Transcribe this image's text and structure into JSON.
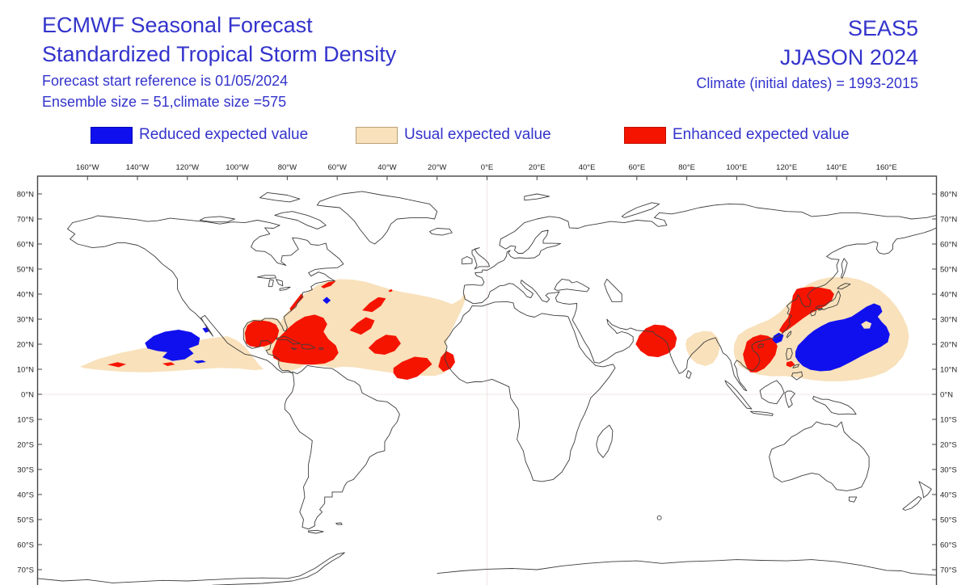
{
  "header": {
    "title_line1": "ECMWF Seasonal Forecast",
    "title_line2": "Standardized Tropical Storm Density",
    "subtitle_line1": "Forecast start reference is 01/05/2024",
    "subtitle_line2": "Ensemble size = 51,climate size =575",
    "system_label": "SEAS5",
    "season_label": "JJASON 2024",
    "climate_note": "Climate (initial dates) = 1993-2015",
    "text_color": "#3333cc"
  },
  "legend": {
    "items": [
      {
        "id": "reduced",
        "label": "Reduced expected value",
        "color": "#1010ee",
        "border": "#0000b8"
      },
      {
        "id": "usual",
        "label": "Usual expected value",
        "color": "#f8e1bb",
        "border": "#b9a078"
      },
      {
        "id": "enhanced",
        "label": "Enhanced expected value",
        "color": "#f51400",
        "border": "#c01000"
      }
    ]
  },
  "map": {
    "top_axis_labels": [
      "160°W",
      "140°W",
      "120°W",
      "100°W",
      "80°W",
      "60°W",
      "40°W",
      "20°W",
      "0°E",
      "20°E",
      "40°E",
      "60°E",
      "80°E",
      "100°E",
      "120°E",
      "140°E",
      "160°E"
    ],
    "left_axis_labels": [
      "80°N",
      "70°N",
      "60°N",
      "50°N",
      "40°N",
      "30°N",
      "20°N",
      "10°N",
      "0°N",
      "10°S",
      "20°S",
      "30°S",
      "40°S",
      "50°S",
      "60°S",
      "70°S"
    ],
    "right_axis_labels": [
      "80°N",
      "70°N",
      "60°N",
      "50°N",
      "40°N",
      "30°N",
      "20°N",
      "10°N",
      "0°N",
      "10°S",
      "20°S",
      "30°S",
      "40°S",
      "50°S",
      "60°S",
      "70°S"
    ],
    "coastline_color": "#3d3d3d",
    "grid_color": "#f0e4e4",
    "frame_color": "#444444",
    "label_color": "#222222",
    "anomaly_regions": [
      {
        "area": "Eastern Pacific",
        "dominant": "usual",
        "details": "reduced core with small enhanced patches"
      },
      {
        "area": "Gulf of Mexico / Caribbean",
        "dominant": "enhanced"
      },
      {
        "area": "North Atlantic",
        "dominant": "usual",
        "details": "many enhanced patches, one small reduced spot"
      },
      {
        "area": "Arabian Sea / NW India",
        "dominant": "enhanced"
      },
      {
        "area": "Bay of Bengal",
        "dominant": "usual"
      },
      {
        "area": "South China Sea / Vietnam",
        "dominant": "enhanced"
      },
      {
        "area": "Korea / Sea of Japan",
        "dominant": "enhanced"
      },
      {
        "area": "Western North Pacific",
        "dominant": "usual",
        "details": "large reduced area with small usual hole"
      }
    ]
  }
}
